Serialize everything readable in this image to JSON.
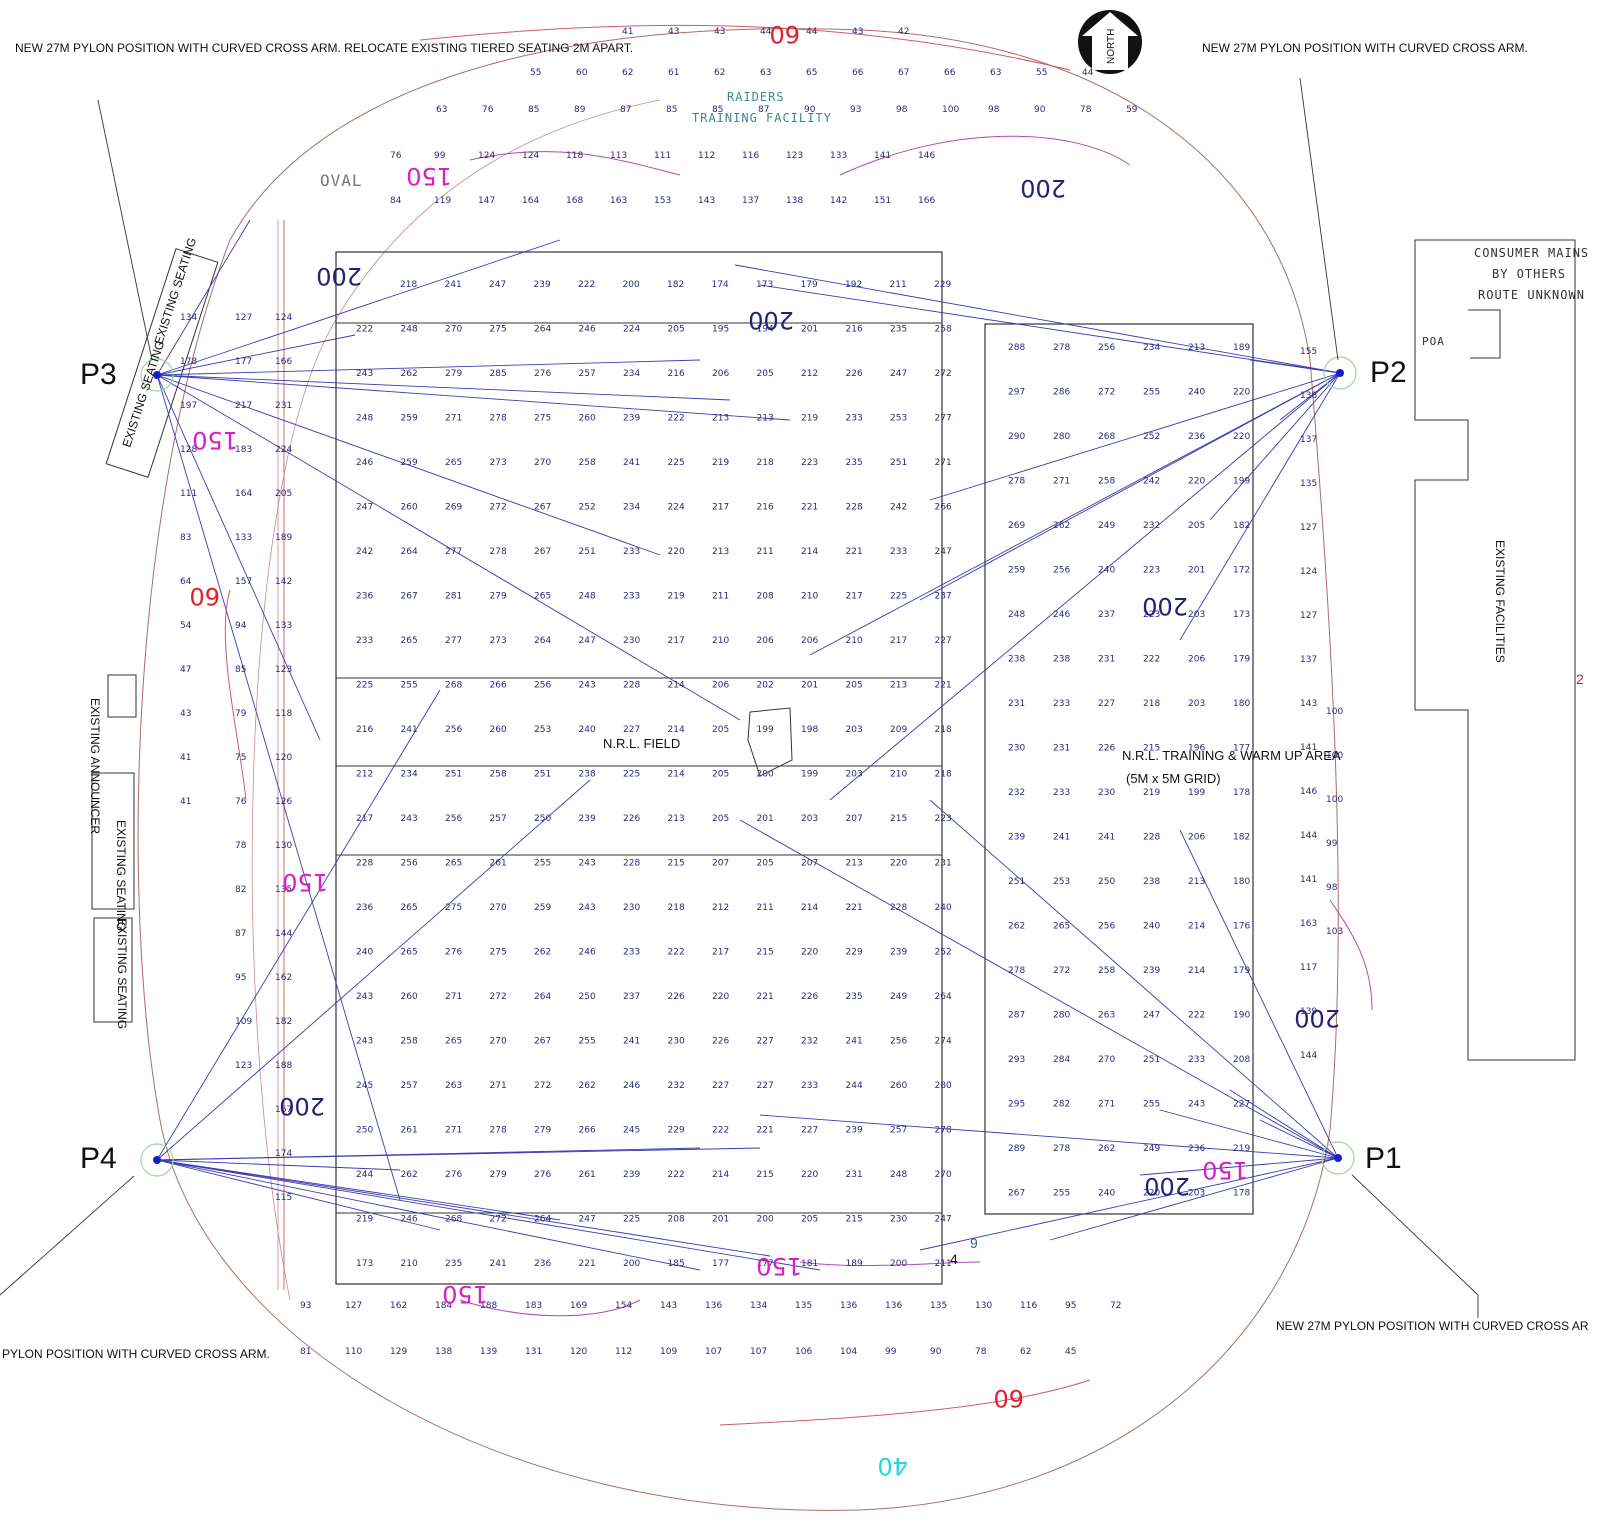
{
  "notes": {
    "pylon_p3_note": "NEW 27M PYLON POSITION WITH CURVED CROSS ARM. RELOCATE EXISTING TIERED SEATING 2M APART.",
    "pylon_p2_note": "NEW 27M PYLON POSITION WITH CURVED CROSS ARM.",
    "pylon_p1_note": "NEW 27M PYLON POSITION WITH CURVED CROSS AR",
    "pylon_p4_note": "PYLON POSITION WITH CURVED CROSS ARM."
  },
  "pylons": {
    "p1": "P1",
    "p2": "P2",
    "p3": "P3",
    "p4": "P4"
  },
  "north_label": "NORTH",
  "areas": {
    "nrl_field": "N.R.L. FIELD",
    "training_area": "N.R.L. TRAINING & WARM UP AREA",
    "training_grid": "(5M x 5M GRID)",
    "raiders_1": "RAIDERS",
    "raiders_2": "TRAINING FACILITY",
    "oval": "OVAL",
    "consumer_1": "CONSUMER MAINS",
    "consumer_2": "BY OTHERS",
    "consumer_3": "ROUTE UNKNOWN",
    "poa": "POA",
    "existing_facilities": "EXISTING FACILITIES",
    "existing_seating": "EXISTING SEATING",
    "existing_announcer": "EXISTING ANNOUNCER"
  },
  "misc_labels": {
    "two": "2",
    "nine": "9",
    "four": "4"
  },
  "isolux": [
    {
      "value": "60",
      "color": "#e0202a"
    },
    {
      "value": "200",
      "color": "#22227a"
    },
    {
      "value": "150",
      "color": "#d81ec8"
    },
    {
      "value": "200",
      "color": "#22227a"
    },
    {
      "value": "200",
      "color": "#22227a"
    },
    {
      "value": "150",
      "color": "#d81ec8"
    },
    {
      "value": "60",
      "color": "#e0202a"
    },
    {
      "value": "200",
      "color": "#22227a"
    },
    {
      "value": "150",
      "color": "#d81ec8"
    },
    {
      "value": "200",
      "color": "#22227a"
    },
    {
      "value": "200",
      "color": "#22227a"
    },
    {
      "value": "200",
      "color": "#22227a"
    },
    {
      "value": "150",
      "color": "#d81ec8"
    },
    {
      "value": "150",
      "color": "#d81ec8"
    },
    {
      "value": "150",
      "color": "#d81ec8"
    },
    {
      "value": "60",
      "color": "#e0202a"
    },
    {
      "value": "40",
      "color": "#22d8e0"
    }
  ],
  "field_rows": [
    [
      "218",
      "241",
      "247",
      "239",
      "222",
      "200",
      "182",
      "174",
      "173",
      "179",
      "192",
      "211",
      "229"
    ],
    [
      "222",
      "248",
      "270",
      "275",
      "264",
      "246",
      "224",
      "205",
      "195",
      "194",
      "201",
      "216",
      "235",
      "258"
    ],
    [
      "243",
      "262",
      "279",
      "285",
      "276",
      "257",
      "234",
      "216",
      "206",
      "205",
      "212",
      "226",
      "247",
      "272"
    ],
    [
      "248",
      "259",
      "271",
      "278",
      "275",
      "260",
      "239",
      "222",
      "213",
      "213",
      "219",
      "233",
      "253",
      "277"
    ],
    [
      "246",
      "259",
      "265",
      "273",
      "270",
      "258",
      "241",
      "225",
      "219",
      "218",
      "223",
      "235",
      "251",
      "271"
    ],
    [
      "247",
      "260",
      "269",
      "272",
      "267",
      "252",
      "234",
      "224",
      "217",
      "216",
      "221",
      "228",
      "242",
      "266"
    ],
    [
      "242",
      "264",
      "277",
      "278",
      "267",
      "251",
      "233",
      "220",
      "213",
      "211",
      "214",
      "221",
      "233",
      "247"
    ],
    [
      "236",
      "267",
      "281",
      "279",
      "265",
      "248",
      "233",
      "219",
      "211",
      "208",
      "210",
      "217",
      "225",
      "237"
    ],
    [
      "233",
      "265",
      "277",
      "273",
      "264",
      "247",
      "230",
      "217",
      "210",
      "206",
      "206",
      "210",
      "217",
      "227"
    ],
    [
      "225",
      "255",
      "268",
      "266",
      "256",
      "243",
      "228",
      "214",
      "206",
      "202",
      "201",
      "205",
      "213",
      "221"
    ],
    [
      "216",
      "241",
      "256",
      "260",
      "253",
      "240",
      "227",
      "214",
      "205",
      "199",
      "198",
      "203",
      "209",
      "218"
    ],
    [
      "212",
      "234",
      "251",
      "258",
      "251",
      "238",
      "225",
      "214",
      "205",
      "200",
      "199",
      "203",
      "210",
      "218"
    ],
    [
      "217",
      "243",
      "256",
      "257",
      "250",
      "239",
      "226",
      "213",
      "205",
      "201",
      "203",
      "207",
      "215",
      "223"
    ],
    [
      "228",
      "256",
      "265",
      "261",
      "255",
      "243",
      "228",
      "215",
      "207",
      "205",
      "207",
      "213",
      "220",
      "231"
    ],
    [
      "236",
      "265",
      "275",
      "270",
      "259",
      "243",
      "230",
      "218",
      "212",
      "211",
      "214",
      "221",
      "228",
      "240"
    ],
    [
      "240",
      "265",
      "276",
      "275",
      "262",
      "246",
      "233",
      "222",
      "217",
      "215",
      "220",
      "229",
      "239",
      "252"
    ],
    [
      "243",
      "260",
      "271",
      "272",
      "264",
      "250",
      "237",
      "226",
      "220",
      "221",
      "226",
      "235",
      "249",
      "264"
    ],
    [
      "243",
      "258",
      "265",
      "270",
      "267",
      "255",
      "241",
      "230",
      "226",
      "227",
      "232",
      "241",
      "256",
      "274"
    ],
    [
      "245",
      "257",
      "263",
      "271",
      "272",
      "262",
      "246",
      "232",
      "227",
      "227",
      "233",
      "244",
      "260",
      "280"
    ],
    [
      "250",
      "261",
      "271",
      "278",
      "279",
      "266",
      "245",
      "229",
      "222",
      "221",
      "227",
      "239",
      "257",
      "278"
    ],
    [
      "244",
      "262",
      "276",
      "279",
      "276",
      "261",
      "239",
      "222",
      "214",
      "215",
      "220",
      "231",
      "248",
      "270"
    ],
    [
      "219",
      "246",
      "268",
      "272",
      "264",
      "247",
      "225",
      "208",
      "201",
      "200",
      "205",
      "215",
      "230",
      "247"
    ],
    [
      "173",
      "210",
      "235",
      "241",
      "236",
      "221",
      "200",
      "185",
      "177",
      "177",
      "181",
      "189",
      "200",
      "211"
    ]
  ],
  "training_rows": [
    [
      "288",
      "278",
      "256",
      "234",
      "213",
      "189"
    ],
    [
      "297",
      "286",
      "272",
      "255",
      "240",
      "220"
    ],
    [
      "290",
      "280",
      "268",
      "252",
      "236",
      "220"
    ],
    [
      "278",
      "271",
      "258",
      "242",
      "220",
      "199"
    ],
    [
      "269",
      "262",
      "249",
      "232",
      "205",
      "182"
    ],
    [
      "259",
      "256",
      "240",
      "223",
      "201",
      "172"
    ],
    [
      "248",
      "246",
      "237",
      "223",
      "203",
      "173"
    ],
    [
      "238",
      "238",
      "231",
      "222",
      "206",
      "179"
    ],
    [
      "231",
      "233",
      "227",
      "218",
      "203",
      "180"
    ],
    [
      "230",
      "231",
      "226",
      "215",
      "196",
      "177"
    ],
    [
      "232",
      "233",
      "230",
      "219",
      "199",
      "178"
    ],
    [
      "239",
      "241",
      "241",
      "228",
      "206",
      "182"
    ],
    [
      "251",
      "253",
      "250",
      "238",
      "213",
      "180"
    ],
    [
      "262",
      "265",
      "256",
      "240",
      "214",
      "176"
    ],
    [
      "278",
      "272",
      "258",
      "239",
      "214",
      "179"
    ],
    [
      "287",
      "280",
      "263",
      "247",
      "222",
      "190"
    ],
    [
      "293",
      "284",
      "270",
      "251",
      "233",
      "208"
    ],
    [
      "295",
      "282",
      "271",
      "255",
      "243",
      "227"
    ],
    [
      "289",
      "278",
      "262",
      "249",
      "236",
      "219"
    ],
    [
      "267",
      "255",
      "240",
      "220",
      "203",
      "178"
    ]
  ],
  "west_cols": [
    [
      "134",
      "178",
      "197",
      "128",
      "111",
      "83",
      "64",
      "54",
      "47",
      "43",
      "41",
      "41"
    ],
    [
      "127",
      "177",
      "217",
      "183",
      "164",
      "133",
      "157",
      "94",
      "85",
      "79",
      "75",
      "76",
      "78",
      "82",
      "87",
      "95",
      "109",
      "123"
    ],
    [
      "124",
      "166",
      "231",
      "224",
      "205",
      "189",
      "142",
      "133",
      "123",
      "118",
      "120",
      "126",
      "130",
      "135",
      "144",
      "162",
      "182",
      "188",
      "167",
      "174",
      "115"
    ],
    [
      "84",
      "119",
      "147",
      "164",
      "168",
      "163",
      "153",
      "143",
      "137",
      "138",
      "142",
      "151",
      "166"
    ],
    [
      "76",
      "99",
      "124",
      "124",
      "118",
      "113",
      "111",
      "112",
      "116",
      "123",
      "133",
      "141",
      "146"
    ]
  ],
  "south_rows": [
    [
      "93",
      "127",
      "162",
      "184",
      "188",
      "183",
      "169",
      "154",
      "143",
      "136",
      "134",
      "135",
      "136",
      "136",
      "135",
      "130",
      "116",
      "95",
      "72"
    ],
    [
      "81",
      "110",
      "129",
      "138",
      "139",
      "131",
      "120",
      "112",
      "109",
      "107",
      "107",
      "106",
      "104",
      "99",
      "90",
      "78",
      "62",
      "45"
    ]
  ],
  "north_rows": [
    [
      "41",
      "43",
      "43",
      "44",
      "44",
      "43",
      "42"
    ],
    [
      "55",
      "60",
      "62",
      "61",
      "62",
      "63",
      "65",
      "66",
      "67",
      "66",
      "63",
      "55",
      "44"
    ],
    [
      "63",
      "76",
      "85",
      "89",
      "87",
      "85",
      "85",
      "87",
      "90",
      "93",
      "98",
      "100",
      "98",
      "90",
      "78",
      "59"
    ]
  ],
  "east_cols": [
    [
      "155",
      "138",
      "137",
      "135",
      "127",
      "124",
      "127",
      "137",
      "143",
      "141",
      "146",
      "144",
      "141",
      "163",
      "117",
      "139",
      "144"
    ],
    [
      "100",
      "100",
      "100",
      "99",
      "98",
      "103"
    ]
  ]
}
